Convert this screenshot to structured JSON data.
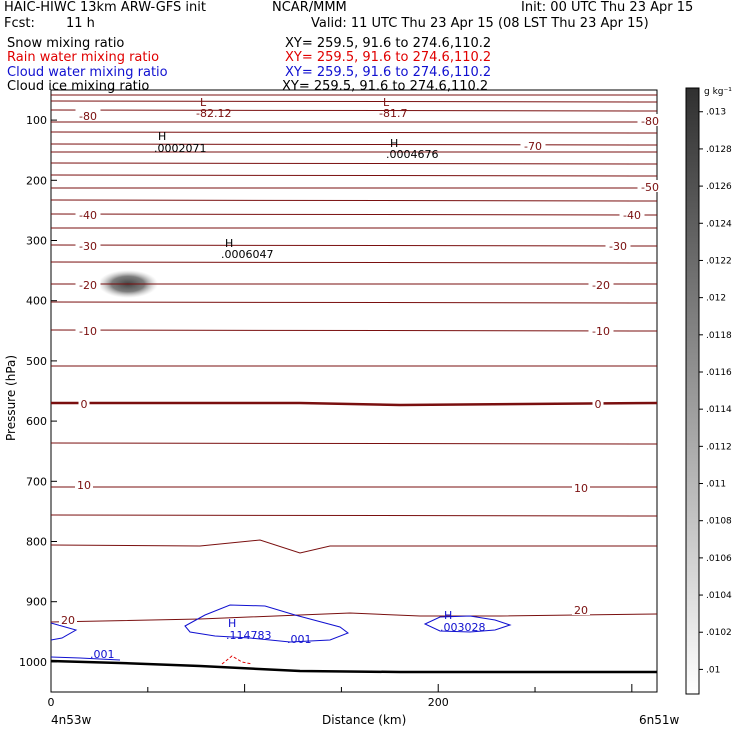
{
  "header": {
    "model": "HAIC-HIWC 13km ARW-GFS init",
    "org": "NCAR/MMM",
    "init": "Init: 00 UTC Thu 23 Apr 15",
    "fcst_label": "Fcst:",
    "fcst_value": "11 h",
    "valid": "Valid: 11 UTC Thu 23 Apr 15 (08 LST Thu 23 Apr 15)",
    "fields": [
      {
        "name": "Snow mixing ratio",
        "xy": "XY= 259.5, 91.6 to 274.6,110.2",
        "color": "#000000"
      },
      {
        "name": "Rain water mixing ratio",
        "xy": "XY= 259.5, 91.6 to 274.6,110.2",
        "color": "#e00000"
      },
      {
        "name": "Cloud water mixing ratio",
        "xy": "XY= 259.5, 91.6 to 274.6,110.2",
        "color": "#1010d0"
      },
      {
        "name": "Cloud ice mixing ratio",
        "xy": "XY= 259.5, 91.6 to 274.6,110.2",
        "color": "#000000"
      }
    ]
  },
  "chart_data": {
    "type": "contour",
    "ylabel": "Pressure (hPa)",
    "xlabel": "Distance (km)",
    "xlim": [
      0,
      313
    ],
    "ylim": [
      1050,
      50
    ],
    "x_ticks": [
      0,
      200
    ],
    "y_ticks": [
      100,
      200,
      300,
      400,
      500,
      600,
      700,
      800,
      900,
      1000
    ],
    "endpoints": {
      "left": "4n53w",
      "right": "6n51w"
    },
    "colorbar": {
      "unit": "g kg⁻¹",
      "levels": [
        ".01",
        ".0102",
        ".0104",
        ".0106",
        ".0108",
        ".011",
        ".0112",
        ".0114",
        ".0116",
        ".0118",
        ".012",
        ".0122",
        ".0124",
        ".0126",
        ".0128",
        ".013"
      ]
    },
    "temperature_contours": [
      {
        "value": -80,
        "labels": [
          "-80",
          "-80"
        ]
      },
      {
        "value": -70,
        "labels": [
          "-70"
        ]
      },
      {
        "value": -50,
        "labels": [
          "-50"
        ]
      },
      {
        "value": -40,
        "labels": [
          "-40",
          "-40"
        ]
      },
      {
        "value": -30,
        "labels": [
          "-30",
          "-30"
        ]
      },
      {
        "value": -20,
        "labels": [
          "-20",
          "-20"
        ]
      },
      {
        "value": -10,
        "labels": [
          "-10",
          "-10"
        ]
      },
      {
        "value": 0,
        "labels": [
          "0",
          "0"
        ]
      },
      {
        "value": 10,
        "labels": [
          "10",
          "10"
        ]
      },
      {
        "value": 20,
        "labels": [
          "20",
          "20"
        ]
      }
    ],
    "extrema": [
      {
        "type": "L",
        "value": "-82.12"
      },
      {
        "type": "L",
        "value": "-81.7"
      },
      {
        "type": "H",
        "value": ".0002071"
      },
      {
        "type": "H",
        "value": ".0004676"
      },
      {
        "type": "H",
        "value": ".0006047"
      },
      {
        "type": "H",
        "value": ".114783"
      },
      {
        "type": "H",
        "value": ".003028"
      }
    ],
    "cloud_water_labels": [
      ".001",
      ".001"
    ]
  }
}
